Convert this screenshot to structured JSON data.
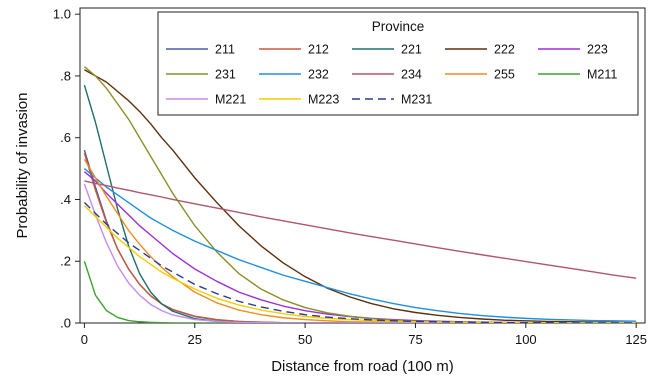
{
  "chart_data": {
    "type": "line",
    "xlabel": "Distance from road (100 m)",
    "ylabel": "Probability of invasion",
    "xlim": [
      -1,
      127
    ],
    "ylim": [
      0,
      1.02
    ],
    "xticks": [
      0,
      25,
      50,
      75,
      100,
      125
    ],
    "xtick_labels": [
      "0",
      "25",
      "50",
      "75",
      "100",
      "125"
    ],
    "yticks": [
      0,
      0.2,
      0.4,
      0.6,
      0.8,
      1.0
    ],
    "ytick_labels": [
      ".0",
      ".2",
      ".4",
      ".6",
      ".8",
      "1.0"
    ],
    "grid": false,
    "legend": {
      "title": "Province",
      "placement": "top-right",
      "columns": 5
    },
    "x": [
      0,
      2.5,
      5,
      7.5,
      10,
      12.5,
      15,
      17.5,
      20,
      25,
      30,
      35,
      40,
      45,
      50,
      55,
      60,
      65,
      70,
      75,
      80,
      85,
      90,
      95,
      100,
      105,
      110,
      115,
      120,
      125
    ],
    "series": [
      {
        "name": "211",
        "color": "#4a5aa6",
        "dash": "solid",
        "values": [
          0.56,
          0.44,
          0.33,
          0.24,
          0.175,
          0.125,
          0.088,
          0.062,
          0.043,
          0.021,
          0.01,
          0.005,
          0.002,
          0.001,
          0.001,
          0,
          0,
          0,
          0,
          0,
          0,
          0,
          0,
          0,
          0,
          0,
          0,
          0,
          0,
          0
        ]
      },
      {
        "name": "212",
        "color": "#c75a3a",
        "dash": "solid",
        "values": [
          0.55,
          0.43,
          0.325,
          0.24,
          0.175,
          0.125,
          0.088,
          0.062,
          0.044,
          0.022,
          0.011,
          0.005,
          0.003,
          0.001,
          0.001,
          0,
          0,
          0,
          0,
          0,
          0,
          0,
          0,
          0,
          0,
          0,
          0,
          0,
          0,
          0
        ]
      },
      {
        "name": "221",
        "color": "#1d6e6e",
        "dash": "solid",
        "values": [
          0.77,
          0.65,
          0.51,
          0.37,
          0.25,
          0.16,
          0.1,
          0.062,
          0.038,
          0.014,
          0.005,
          0.002,
          0.001,
          0,
          0,
          0,
          0,
          0,
          0,
          0,
          0,
          0,
          0,
          0,
          0,
          0,
          0,
          0,
          0,
          0
        ]
      },
      {
        "name": "222",
        "color": "#5e2f0d",
        "dash": "solid",
        "values": [
          0.82,
          0.8,
          0.78,
          0.75,
          0.72,
          0.685,
          0.645,
          0.6,
          0.56,
          0.47,
          0.39,
          0.315,
          0.25,
          0.195,
          0.15,
          0.113,
          0.085,
          0.063,
          0.046,
          0.034,
          0.025,
          0.018,
          0.013,
          0.009,
          0.007,
          0.005,
          0.004,
          0.003,
          0.002,
          0.001
        ]
      },
      {
        "name": "223",
        "color": "#9b30d6",
        "dash": "solid",
        "values": [
          0.49,
          0.46,
          0.42,
          0.385,
          0.35,
          0.315,
          0.285,
          0.255,
          0.225,
          0.175,
          0.135,
          0.1,
          0.075,
          0.055,
          0.04,
          0.029,
          0.021,
          0.015,
          0.011,
          0.008,
          0.006,
          0.004,
          0.003,
          0.002,
          0.001,
          0.001,
          0.001,
          0,
          0,
          0
        ]
      },
      {
        "name": "231",
        "color": "#8a8f2a",
        "dash": "solid",
        "values": [
          0.83,
          0.8,
          0.76,
          0.71,
          0.66,
          0.6,
          0.54,
          0.48,
          0.42,
          0.315,
          0.23,
          0.16,
          0.11,
          0.075,
          0.05,
          0.033,
          0.022,
          0.014,
          0.009,
          0.006,
          0.004,
          0.003,
          0.002,
          0.001,
          0.001,
          0,
          0,
          0,
          0,
          0
        ]
      },
      {
        "name": "232",
        "color": "#1f8fe0",
        "dash": "solid",
        "values": [
          0.5,
          0.47,
          0.44,
          0.415,
          0.39,
          0.365,
          0.34,
          0.32,
          0.3,
          0.265,
          0.235,
          0.205,
          0.18,
          0.155,
          0.135,
          0.115,
          0.095,
          0.078,
          0.063,
          0.05,
          0.04,
          0.031,
          0.024,
          0.019,
          0.015,
          0.012,
          0.01,
          0.008,
          0.007,
          0.006
        ]
      },
      {
        "name": "234",
        "color": "#b0566e",
        "dash": "solid",
        "values": [
          0.46,
          0.452,
          0.445,
          0.437,
          0.43,
          0.422,
          0.415,
          0.408,
          0.4,
          0.386,
          0.372,
          0.358,
          0.344,
          0.331,
          0.318,
          0.305,
          0.292,
          0.28,
          0.268,
          0.256,
          0.244,
          0.232,
          0.221,
          0.21,
          0.199,
          0.188,
          0.177,
          0.166,
          0.155,
          0.145
        ]
      },
      {
        "name": "255",
        "color": "#f08c22",
        "dash": "solid",
        "values": [
          0.53,
          0.47,
          0.41,
          0.355,
          0.3,
          0.255,
          0.215,
          0.18,
          0.15,
          0.1,
          0.065,
          0.042,
          0.027,
          0.017,
          0.011,
          0.007,
          0.004,
          0.003,
          0.002,
          0.001,
          0.001,
          0,
          0,
          0,
          0,
          0,
          0,
          0,
          0,
          0
        ]
      },
      {
        "name": "M211",
        "color": "#3aa32e",
        "dash": "solid",
        "values": [
          0.2,
          0.09,
          0.04,
          0.018,
          0.008,
          0.004,
          0.002,
          0.001,
          0,
          0,
          0,
          0,
          0,
          0,
          0,
          0,
          0,
          0,
          0,
          0,
          0,
          0,
          0,
          0,
          0,
          0,
          0,
          0,
          0,
          0
        ]
      },
      {
        "name": "M221",
        "color": "#c58bf0",
        "dash": "solid",
        "values": [
          0.45,
          0.35,
          0.26,
          0.185,
          0.13,
          0.09,
          0.06,
          0.04,
          0.026,
          0.011,
          0.005,
          0.002,
          0.001,
          0,
          0,
          0,
          0,
          0,
          0,
          0,
          0,
          0,
          0,
          0,
          0,
          0,
          0,
          0,
          0,
          0
        ]
      },
      {
        "name": "M223",
        "color": "#f2cf00",
        "dash": "solid",
        "values": [
          0.38,
          0.345,
          0.31,
          0.275,
          0.245,
          0.215,
          0.19,
          0.165,
          0.145,
          0.11,
          0.08,
          0.058,
          0.042,
          0.03,
          0.021,
          0.015,
          0.011,
          0.008,
          0.006,
          0.004,
          0.003,
          0.002,
          0.002,
          0.001,
          0.001,
          0.001,
          0,
          0,
          0,
          0
        ]
      },
      {
        "name": "M231",
        "color": "#2a3d8f",
        "dash": "dash",
        "values": [
          0.39,
          0.355,
          0.32,
          0.29,
          0.26,
          0.235,
          0.21,
          0.185,
          0.165,
          0.125,
          0.095,
          0.07,
          0.052,
          0.038,
          0.027,
          0.019,
          0.014,
          0.01,
          0.007,
          0.005,
          0.004,
          0.003,
          0.002,
          0.001,
          0.001,
          0.001,
          0,
          0,
          0,
          0
        ]
      }
    ]
  }
}
